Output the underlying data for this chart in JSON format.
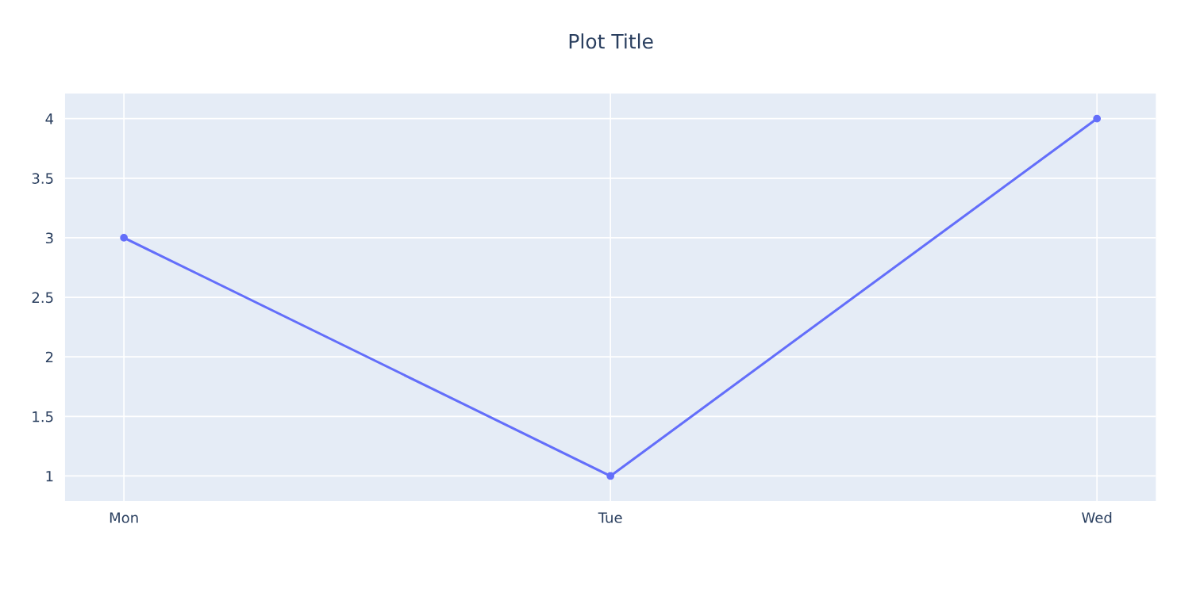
{
  "chart_data": {
    "type": "line",
    "title": "Plot Title",
    "categories": [
      "Mon",
      "Tue",
      "Wed"
    ],
    "series": [
      {
        "color": "#636efa",
        "values": [
          3,
          1,
          4
        ]
      }
    ],
    "ylim": [
      0.79,
      4.21
    ],
    "yticks": [
      1,
      1.5,
      2,
      2.5,
      3,
      3.5,
      4
    ],
    "grid": true,
    "marker": "circle",
    "line_style": "solid"
  }
}
